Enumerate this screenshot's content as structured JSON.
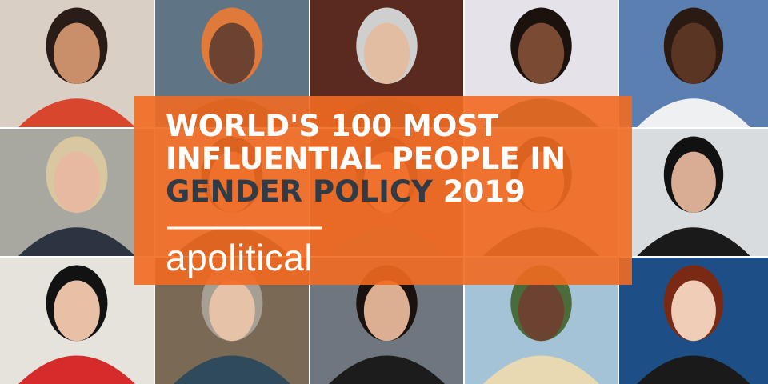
{
  "banner": {
    "title_lines": [
      "WORLD'S 100 MOST",
      "INFLUENTIAL PEOPLE IN"
    ],
    "highlight": "GENDER POLICY",
    "year": "2019",
    "brand": "apolitical"
  }
}
